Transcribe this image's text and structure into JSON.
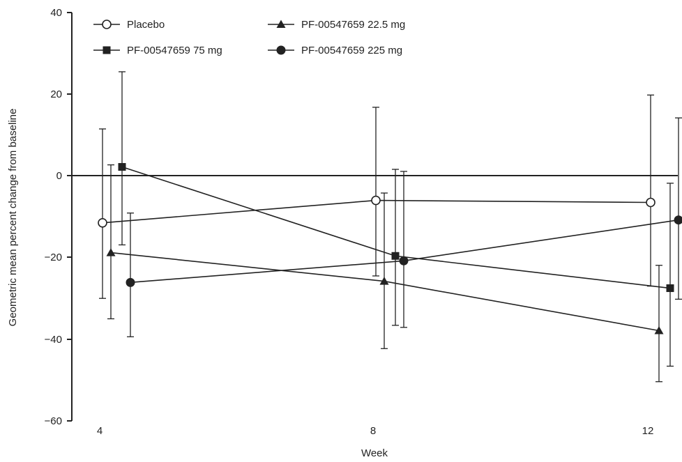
{
  "chart_data": {
    "type": "line",
    "xlabel": "Week",
    "ylabel": "Geometric mean percent change from baseline",
    "x_ticks": [
      "4",
      "8",
      "12"
    ],
    "y_ticks": [
      "40",
      "20",
      "0",
      "−20",
      "−40",
      "−60"
    ],
    "ylim": [
      -60,
      40
    ],
    "reference_line_y": 0,
    "grid": false,
    "legend_position": "top-left",
    "error_bars": true,
    "series": [
      {
        "name": "Placebo",
        "marker": "open-circle",
        "x": [
          4,
          8,
          12
        ],
        "y": [
          -11.5,
          -6.0,
          -6.5
        ],
        "ci_low": [
          -30.0,
          -24.5,
          -27.0
        ],
        "ci_high": [
          11.5,
          16.8,
          19.8
        ]
      },
      {
        "name": "PF-00547659 22.5 mg",
        "marker": "triangle",
        "x": [
          4,
          8,
          12
        ],
        "y": [
          -18.8,
          -25.8,
          -37.9
        ],
        "ci_low": [
          -35.0,
          -42.3,
          -50.4
        ],
        "ci_high": [
          2.7,
          -4.2,
          -21.9
        ]
      },
      {
        "name": "PF-00547659 75 mg",
        "marker": "square",
        "x": [
          4,
          8,
          12
        ],
        "y": [
          2.2,
          -19.6,
          -27.5
        ],
        "ci_low": [
          -16.9,
          -36.6,
          -46.6
        ],
        "ci_high": [
          25.5,
          1.6,
          -1.8
        ]
      },
      {
        "name": "PF-00547659 225 mg",
        "marker": "filled-circle",
        "x": [
          4,
          8,
          12
        ],
        "y": [
          -26.1,
          -20.8,
          -10.8
        ],
        "ci_low": [
          -39.4,
          -37.1,
          -30.2
        ],
        "ci_high": [
          -9.1,
          1.1,
          14.2
        ]
      }
    ]
  }
}
